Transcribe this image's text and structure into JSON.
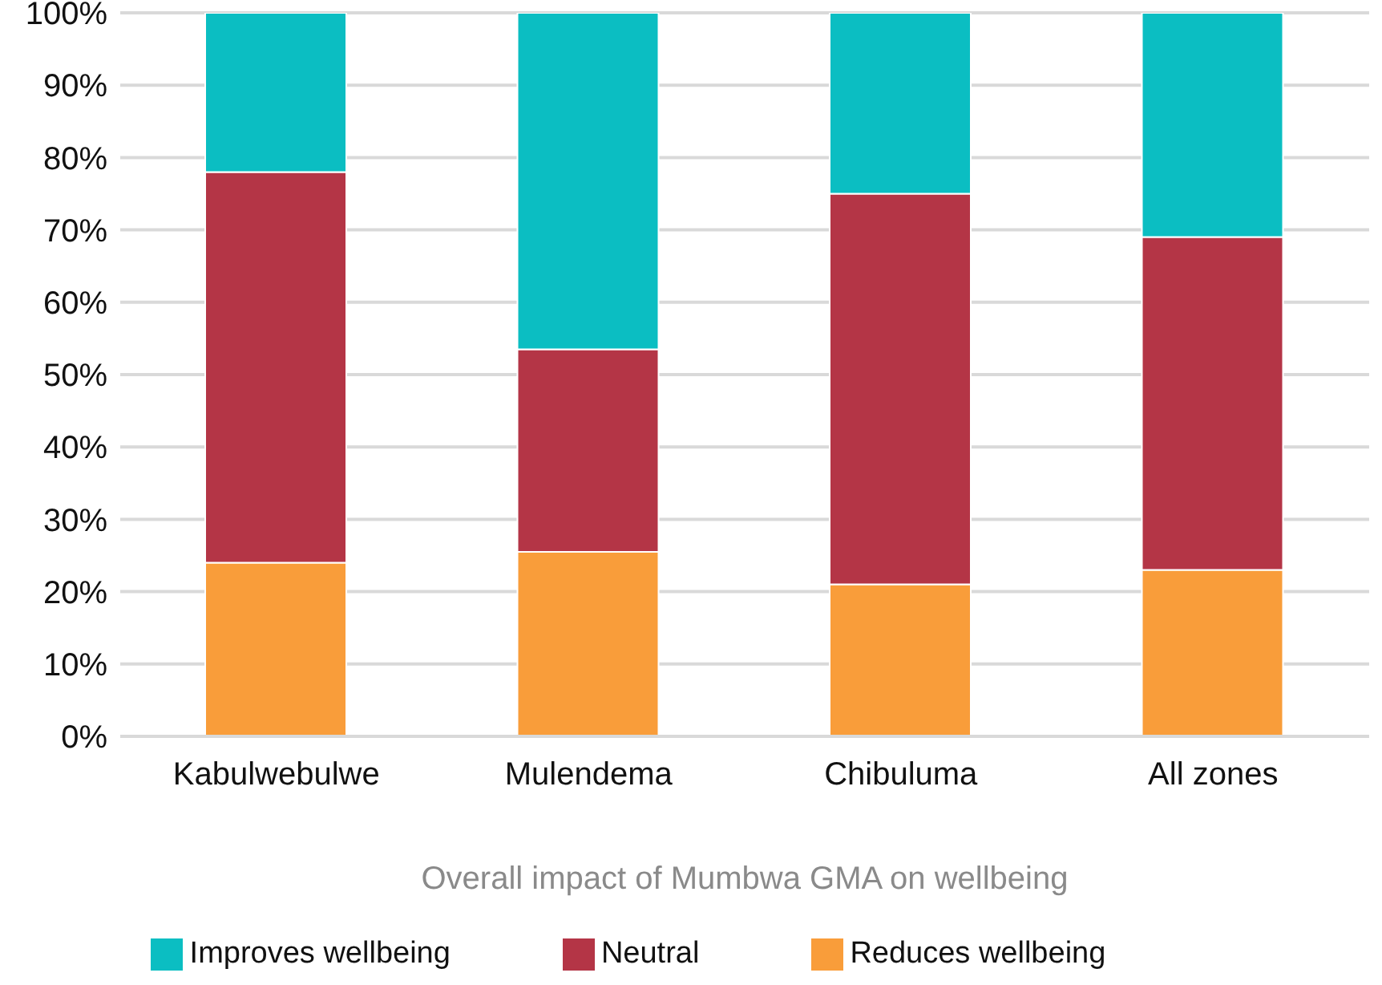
{
  "chart_data": {
    "type": "bar",
    "stacked": true,
    "xlabel": "Overall impact of Mumbwa GMA on wellbeing",
    "categories": [
      "Kabulwebulwe",
      "Mulendema",
      "Chibuluma",
      "All zones"
    ],
    "series": [
      {
        "name": "Reduces wellbeing",
        "color": "#f99d3a",
        "values": [
          24,
          25.5,
          21,
          23
        ]
      },
      {
        "name": "Neutral",
        "color": "#b43546",
        "values": [
          54,
          28,
          54,
          46
        ]
      },
      {
        "name": "Improves wellbeing",
        "color": "#0bbec2",
        "values": [
          22,
          46.5,
          25,
          31
        ]
      }
    ],
    "ylim": [
      0,
      100
    ],
    "yticks": [
      {
        "value": 0,
        "label": "0%"
      },
      {
        "value": 10,
        "label": "10%"
      },
      {
        "value": 20,
        "label": "20%"
      },
      {
        "value": 30,
        "label": "30%"
      },
      {
        "value": 40,
        "label": "40%"
      },
      {
        "value": 50,
        "label": "50%"
      },
      {
        "value": 60,
        "label": "60%"
      },
      {
        "value": 70,
        "label": "70%"
      },
      {
        "value": 80,
        "label": "80%"
      },
      {
        "value": 90,
        "label": "90%"
      },
      {
        "value": 100,
        "label": "100%"
      }
    ],
    "grid": "y",
    "legend": "bottom"
  }
}
